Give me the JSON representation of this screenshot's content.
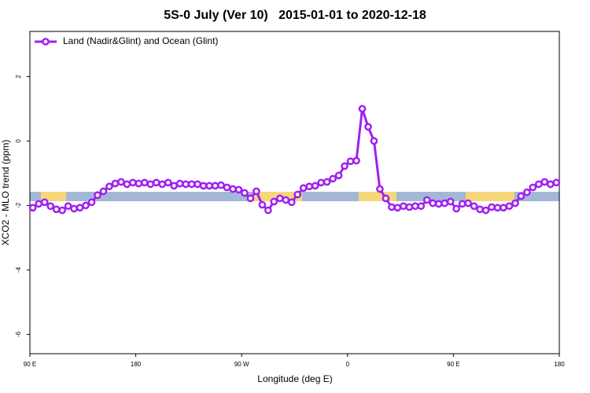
{
  "chart_data": {
    "type": "line",
    "title": "5S-0 July (Ver 10)   2015-01-01 to 2020-12-18",
    "x_label": "Longitude (deg E)",
    "y_label": "XCO2 - MLO trend (ppm)",
    "xlim": [
      90,
      540
    ],
    "ylim": [
      -6.6,
      3.4
    ],
    "xticks": [
      {
        "value": 90,
        "label": "90 E"
      },
      {
        "value": 180,
        "label": "180"
      },
      {
        "value": 270,
        "label": "90 W"
      },
      {
        "value": 360,
        "label": "0"
      },
      {
        "value": 450,
        "label": "90 E"
      },
      {
        "value": 540,
        "label": "180"
      }
    ],
    "yticks": [
      -6,
      -4,
      -2,
      0,
      2
    ],
    "legend": "top-left",
    "x": [
      92.5,
      97.5,
      102.5,
      107.5,
      112.5,
      117.5,
      122.5,
      127.5,
      132.5,
      137.5,
      142.5,
      147.5,
      152.5,
      157.5,
      162.5,
      167.5,
      172.5,
      177.5,
      182.5,
      187.5,
      192.5,
      197.5,
      202.5,
      207.5,
      212.5,
      217.5,
      222.5,
      227.5,
      232.5,
      237.5,
      242.5,
      247.5,
      252.5,
      257.5,
      262.5,
      267.5,
      272.5,
      277.5,
      282.5,
      287.5,
      292.5,
      297.5,
      302.5,
      307.5,
      312.5,
      317.5,
      322.5,
      327.5,
      332.5,
      337.5,
      342.5,
      347.5,
      352.5,
      357.5,
      362.5,
      367.5,
      372.5,
      377.5,
      382.5,
      387.5,
      392.5,
      397.5,
      402.5,
      407.5,
      412.5,
      417.5,
      422.5,
      427.5,
      432.5,
      437.5,
      442.5,
      447.5,
      452.5,
      457.5,
      462.5,
      467.5,
      472.5,
      477.5,
      482.5,
      487.5,
      492.5,
      497.5,
      502.5,
      507.5,
      512.5,
      517.5,
      522.5,
      527.5,
      532.5,
      537.5
    ],
    "series": [
      {
        "name": "Land (Nadir&Glint) and Ocean (Glint)",
        "color": "#a020f0",
        "values": [
          -2.07,
          -1.95,
          -1.9,
          -2.02,
          -2.12,
          -2.15,
          -2.02,
          -2.1,
          -2.07,
          -2.0,
          -1.9,
          -1.68,
          -1.56,
          -1.41,
          -1.32,
          -1.27,
          -1.34,
          -1.29,
          -1.32,
          -1.29,
          -1.34,
          -1.29,
          -1.34,
          -1.29,
          -1.39,
          -1.32,
          -1.34,
          -1.34,
          -1.34,
          -1.39,
          -1.39,
          -1.39,
          -1.37,
          -1.44,
          -1.49,
          -1.51,
          -1.61,
          -1.78,
          -1.56,
          -1.98,
          -2.15,
          -1.88,
          -1.78,
          -1.83,
          -1.9,
          -1.66,
          -1.46,
          -1.41,
          -1.39,
          -1.29,
          -1.27,
          -1.17,
          -1.07,
          -0.78,
          -0.63,
          -0.61,
          1.0,
          0.44,
          0.0,
          -1.49,
          -1.78,
          -2.05,
          -2.07,
          -2.02,
          -2.05,
          -2.02,
          -2.02,
          -1.83,
          -1.93,
          -1.95,
          -1.93,
          -1.88,
          -2.1,
          -1.95,
          -1.93,
          -2.02,
          -2.12,
          -2.15,
          -2.05,
          -2.07,
          -2.07,
          -2.02,
          -1.93,
          -1.71,
          -1.59,
          -1.44,
          -1.34,
          -1.27,
          -1.34,
          -1.29
        ]
      }
    ]
  }
}
